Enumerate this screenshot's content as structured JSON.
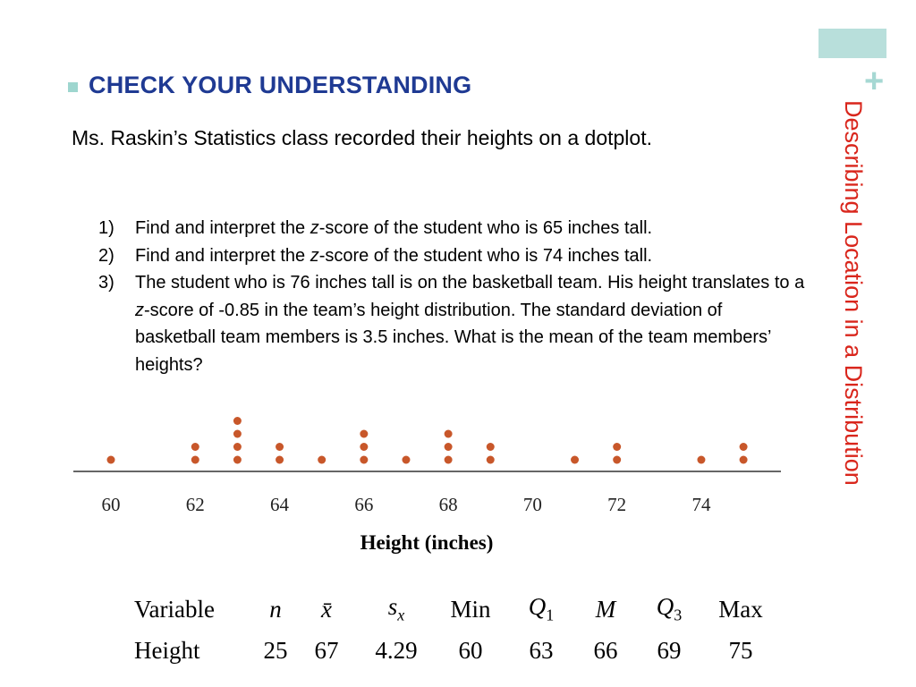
{
  "slide": {
    "side_title": "Describing Location in a Distribution",
    "corner_plus": "+",
    "heading": "CHECK YOUR UNDERSTANDING",
    "intro": "Ms. Raskin’s Statistics class recorded their heights on a dotplot.",
    "questions": [
      {
        "num": "1)",
        "before": "Find and interpret the ",
        "italic": "z",
        "after": "-score of the student who is 65 inches tall."
      },
      {
        "num": "2)",
        "before": "Find and interpret the ",
        "italic": "z",
        "after": "-score of the student who is 74 inches tall."
      },
      {
        "num": "3)",
        "before": "The student who is 76 inches tall is on the basketball team.  His height translates to a ",
        "italic": "z",
        "after": "-score of -0.85 in the team’s height distribution.  The standard deviation of basketball team members is 3.5 inches.  What is the mean of the team members’ heights?"
      }
    ]
  },
  "chart_data": {
    "type": "scatter",
    "subtype": "dotplot",
    "xlabel": "Height (inches)",
    "xlim": [
      60,
      75
    ],
    "ticks": [
      60,
      62,
      64,
      66,
      68,
      70,
      72,
      74
    ],
    "points": [
      {
        "x": 60,
        "count": 1
      },
      {
        "x": 62,
        "count": 2
      },
      {
        "x": 63,
        "count": 4
      },
      {
        "x": 64,
        "count": 2
      },
      {
        "x": 65,
        "count": 1
      },
      {
        "x": 66,
        "count": 3
      },
      {
        "x": 67,
        "count": 1
      },
      {
        "x": 68,
        "count": 3
      },
      {
        "x": 69,
        "count": 2
      },
      {
        "x": 71,
        "count": 1
      },
      {
        "x": 72,
        "count": 2
      },
      {
        "x": 74,
        "count": 1
      },
      {
        "x": 75,
        "count": 2
      }
    ],
    "dot_color": "#c8572a"
  },
  "stats_table": {
    "headers": [
      {
        "main": "Variable",
        "sub": "",
        "italic": false
      },
      {
        "main": "n",
        "sub": "",
        "italic": true
      },
      {
        "main": "x̄",
        "sub": "",
        "italic": true
      },
      {
        "main": "s",
        "sub": "x",
        "italic": true
      },
      {
        "main": "Min",
        "sub": "",
        "italic": false
      },
      {
        "main": "Q",
        "sub": "1",
        "italic": true
      },
      {
        "main": "M",
        "sub": "",
        "italic": true
      },
      {
        "main": "Q",
        "sub": "3",
        "italic": true
      },
      {
        "main": "Max",
        "sub": "",
        "italic": false
      }
    ],
    "row": [
      "Height",
      "25",
      "67",
      "4.29",
      "60",
      "63",
      "66",
      "69",
      "75"
    ]
  }
}
